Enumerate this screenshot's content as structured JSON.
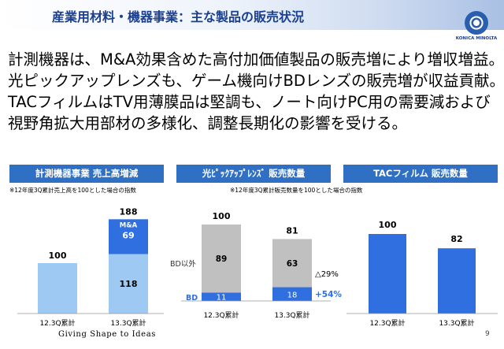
{
  "header": {
    "title": "産業用材料・機器事業：主な製品の販売状況",
    "logo_text": "KONICA MINOLTA"
  },
  "body_lines": [
    "計測機器は、M&A効果含めた高付加価値製品の販売増により増収増益。",
    "光ピックアップレンズも、ゲーム機向けBDレンズの販売増が収益貢献。",
    "TACフィルムはTV用薄膜品は堅調も、ノート向けPC用の需要減および",
    "視野角拡大用部材の多様化、調整長期化の影響を受ける。"
  ],
  "panels": [
    {
      "title": "計測機器事業 売上高増減",
      "note": "※12年度3Q累計売上高を100とした場合の指数"
    },
    {
      "title": "光ﾋﾟｯｸｱｯﾌﾟﾚﾝｽﾞ 販売数量",
      "note": "※12年度3Q累計販売数量を100とした場合の指数"
    },
    {
      "title": "TACフィルム 販売数量",
      "note": ""
    }
  ],
  "chart_data": [
    {
      "type": "bar",
      "categories": [
        "12.3Q累計",
        "13.3Q累計"
      ],
      "series": [
        {
          "name": "",
          "values": [
            100,
            118
          ]
        },
        {
          "name": "M&A",
          "values": [
            0,
            69
          ]
        }
      ],
      "totals": [
        100,
        188
      ],
      "colors": {
        "base": "#9dc9f2",
        "ma": "#2f6fe0"
      }
    },
    {
      "type": "bar",
      "categories": [
        "12.3Q累計",
        "13.3Q累計"
      ],
      "series": [
        {
          "name": "BD",
          "values": [
            11,
            18
          ]
        },
        {
          "name": "BD以外",
          "values": [
            89,
            63
          ]
        }
      ],
      "totals": [
        100,
        81
      ],
      "annotations": {
        "bd_change": "+54%",
        "other_change": "△29%"
      },
      "colors": {
        "bd": "#2f6fe0",
        "other": "#c0c0c0"
      }
    },
    {
      "type": "bar",
      "categories": [
        "12.3Q累計",
        "13.3Q累計"
      ],
      "values": [
        100,
        82
      ],
      "colors": {
        "bar": "#2f6fe0"
      }
    }
  ],
  "footer": {
    "tagline": "Giving Shape to Ideas",
    "page": "9"
  }
}
